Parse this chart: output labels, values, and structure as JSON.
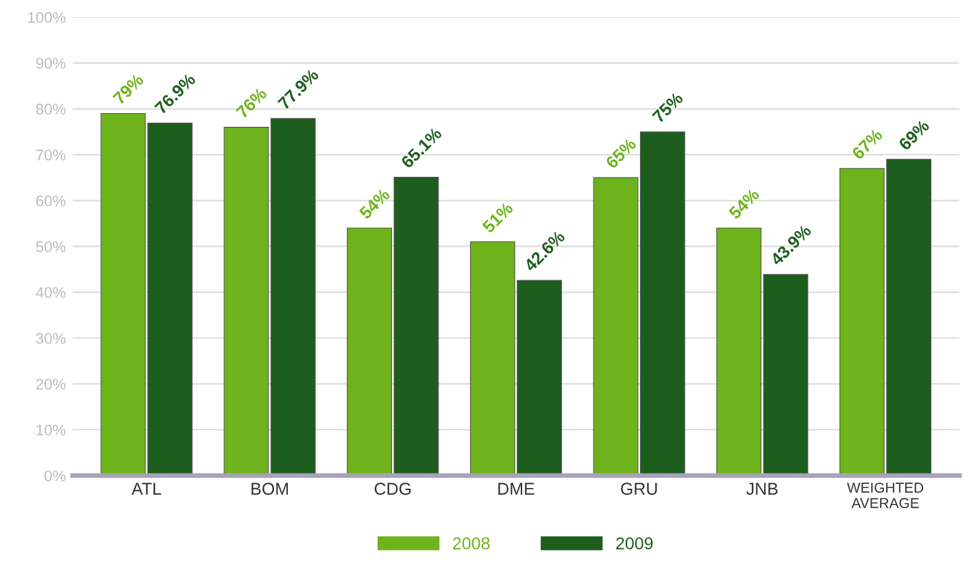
{
  "chart_data": {
    "type": "bar",
    "categories": [
      "ATL",
      "BOM",
      "CDG",
      "DME",
      "GRU",
      "JNB",
      "WEIGHTED\nAVERAGE"
    ],
    "series": [
      {
        "name": "2008",
        "color": "#6db31c",
        "values": [
          79,
          76,
          54,
          51,
          65,
          54,
          67
        ],
        "value_labels": [
          "79%",
          "76%",
          "54%",
          "51%",
          "65%",
          "54%",
          "67%"
        ]
      },
      {
        "name": "2009",
        "color": "#1d5e1f",
        "values": [
          76.9,
          77.9,
          65.1,
          42.6,
          75,
          43.9,
          69
        ],
        "value_labels": [
          "76.9%",
          "77.9%",
          "65.1%",
          "42.6%",
          "75%",
          "43.9%",
          "69%"
        ]
      }
    ],
    "ylim": [
      0,
      100
    ],
    "yticks": [
      {
        "value": 0,
        "label": "0%"
      },
      {
        "value": 10,
        "label": "10%"
      },
      {
        "value": 20,
        "label": "20%"
      },
      {
        "value": 30,
        "label": "30%"
      },
      {
        "value": 40,
        "label": "40%"
      },
      {
        "value": 50,
        "label": "50%"
      },
      {
        "value": 60,
        "label": "60%"
      },
      {
        "value": 70,
        "label": "70%"
      },
      {
        "value": 80,
        "label": "80%"
      },
      {
        "value": 90,
        "label": "90%"
      },
      {
        "value": 100,
        "label": "100%"
      }
    ],
    "grid": "y",
    "legend": "bottom"
  }
}
